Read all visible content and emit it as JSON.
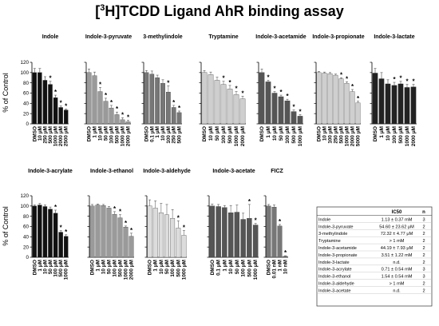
{
  "title": {
    "pre": "[",
    "sup": "3",
    "post": "H]TCDD Ligand AhR binding assay"
  },
  "ylabel": "% of Control",
  "yticks": [
    "0",
    "20",
    "40",
    "60",
    "80",
    "100",
    "120"
  ],
  "colors": {
    "black": "#111111",
    "dark": "#555555",
    "mid": "#777777",
    "gray": "#9a9a9a",
    "light": "#cfcfcf",
    "bar_edge": "#222222"
  },
  "chart_data": [
    {
      "type": "bar",
      "title": "Indole",
      "ylim": [
        0,
        120
      ],
      "color": "#111111",
      "categories": [
        "DMSO",
        "10 μM",
        "250 μM",
        "500 μM",
        "1000 μM",
        "2000 μM",
        "2500 μM"
      ],
      "values": [
        100,
        100,
        85,
        77,
        51,
        32,
        27
      ],
      "errors": [
        8,
        8,
        7,
        6,
        5,
        3,
        2
      ],
      "significant": [
        false,
        false,
        false,
        true,
        true,
        true,
        true
      ]
    },
    {
      "type": "bar",
      "title": "Indole-3-pyruvate",
      "ylim": [
        0,
        120
      ],
      "color": "#9a9a9a",
      "categories": [
        "DMSO",
        "1 μM",
        "10 μM",
        "50 μM",
        "100 μM",
        "500 μM",
        "1000 μM",
        "2000 μM"
      ],
      "values": [
        100,
        94,
        63,
        44,
        31,
        18,
        8,
        4
      ],
      "errors": [
        7,
        7,
        8,
        6,
        5,
        5,
        4,
        3
      ],
      "significant": [
        false,
        false,
        true,
        true,
        true,
        true,
        true,
        true
      ]
    },
    {
      "type": "bar",
      "title": "3-methylindole",
      "ylim": [
        0,
        120
      ],
      "color": "#777777",
      "categories": [
        "DMSO",
        "0.1 μM",
        "1 μM",
        "10 μM",
        "100 μM",
        "250 μM",
        "500 μM"
      ],
      "values": [
        100,
        97,
        90,
        79,
        62,
        32,
        22
      ],
      "errors": [
        4,
        6,
        5,
        7,
        12,
        4,
        3
      ],
      "significant": [
        false,
        false,
        false,
        false,
        true,
        true,
        true
      ]
    },
    {
      "type": "bar",
      "title": "Tryptamine",
      "ylim": [
        0,
        120
      ],
      "color": "#cfcfcf",
      "categories": [
        "DMSO",
        "10 μM",
        "50 μM",
        "100 μM",
        "500 μM",
        "1000 μM",
        "2000 μM"
      ],
      "values": [
        100,
        96,
        85,
        77,
        68,
        57,
        49
      ],
      "errors": [
        4,
        5,
        6,
        6,
        7,
        6,
        5
      ],
      "significant": [
        false,
        false,
        false,
        true,
        true,
        true,
        true
      ]
    },
    {
      "type": "bar",
      "title": "Indole-3-acetamide",
      "ylim": [
        0,
        120
      ],
      "color": "#555555",
      "categories": [
        "DMSO",
        "1 μM",
        "10 μM",
        "50 μM",
        "100 μM",
        "500 μM",
        "1000 μM"
      ],
      "values": [
        100,
        82,
        60,
        53,
        45,
        24,
        15
      ],
      "errors": [
        7,
        3,
        3,
        3,
        3,
        3,
        3
      ],
      "significant": [
        false,
        true,
        true,
        true,
        true,
        true,
        true
      ]
    },
    {
      "type": "bar",
      "title": "Indole-3-propionate",
      "ylim": [
        0,
        120
      ],
      "color": "#cfcfcf",
      "categories": [
        "DMSO",
        "10 μM",
        "100 μM",
        "250 μM",
        "500 μM",
        "1000 μM",
        "2000 μM",
        "5000 μM"
      ],
      "values": [
        100,
        99,
        98,
        95,
        88,
        79,
        63,
        41
      ],
      "errors": [
        2,
        2,
        2,
        2,
        2,
        3,
        4,
        3
      ],
      "significant": [
        false,
        false,
        false,
        false,
        true,
        true,
        true,
        true
      ]
    },
    {
      "type": "bar",
      "title": "Indole-3-lactate",
      "ylim": [
        0,
        120
      ],
      "color": "#222222",
      "categories": [
        "DMSO",
        "1 μM",
        "10 μM",
        "100 μM",
        "500 μM",
        "1000 μM",
        "2000 μM"
      ],
      "values": [
        99,
        88,
        78,
        75,
        78,
        71,
        72
      ],
      "errors": [
        9,
        12,
        8,
        6,
        5,
        6,
        5
      ],
      "significant": [
        false,
        false,
        false,
        true,
        true,
        true,
        true
      ]
    },
    {
      "type": "bar",
      "title": "Indole-3-acrylate",
      "ylim": [
        0,
        120
      ],
      "color": "#111111",
      "categories": [
        "DMSO",
        "1 μM",
        "10 μM",
        "50 μM",
        "100 μM",
        "500 μM",
        "1000 μM"
      ],
      "values": [
        100,
        102,
        99,
        94,
        86,
        49,
        41
      ],
      "errors": [
        2,
        3,
        3,
        4,
        6,
        3,
        3
      ],
      "significant": [
        false,
        false,
        false,
        false,
        true,
        true,
        true
      ]
    },
    {
      "type": "bar",
      "title": "Indole-3-ethanol",
      "ylim": [
        0,
        120
      ],
      "color": "#9a9a9a",
      "categories": [
        "DMSO",
        "1 μM",
        "10 μM",
        "50 μM",
        "100 μM",
        "500 μM",
        "1000 μM",
        "2000 μM"
      ],
      "values": [
        100,
        102,
        101,
        96,
        84,
        77,
        59,
        41
      ],
      "errors": [
        3,
        2,
        2,
        3,
        5,
        6,
        2,
        6
      ],
      "significant": [
        false,
        false,
        false,
        false,
        true,
        true,
        true,
        true
      ]
    },
    {
      "type": "bar",
      "title": "Indole-3-aldehyde",
      "ylim": [
        0,
        120
      ],
      "color": "#dcdcdc",
      "categories": [
        "DMSO",
        "1 μM",
        "10 μM",
        "50 μM",
        "100 μM",
        "500 μM",
        "1000 μM"
      ],
      "values": [
        100,
        96,
        87,
        83,
        76,
        57,
        43
      ],
      "errors": [
        12,
        14,
        18,
        20,
        17,
        14,
        9
      ],
      "significant": [
        false,
        false,
        false,
        false,
        false,
        true,
        true
      ]
    },
    {
      "type": "bar",
      "title": "Indole-3-acetate",
      "ylim": [
        0,
        120
      ],
      "color": "#555555",
      "categories": [
        "DMSO",
        "0.1 μM",
        "1 μM",
        "10 μM",
        "50 μM",
        "100 μM",
        "500 μM",
        "1000 μM"
      ],
      "values": [
        100,
        99,
        97,
        87,
        88,
        74,
        76,
        63
      ],
      "errors": [
        4,
        4,
        4,
        14,
        14,
        12,
        27,
        3
      ],
      "significant": [
        false,
        false,
        false,
        false,
        false,
        false,
        true,
        true
      ]
    },
    {
      "type": "bar",
      "title": "FICZ",
      "ylim": [
        0,
        120
      ],
      "color": "#777777",
      "categories": [
        "DMSO",
        "0.01 nM",
        "1 nM",
        "10 nM"
      ],
      "values": [
        100,
        98,
        61,
        2
      ],
      "errors": [
        3,
        4,
        3,
        1
      ],
      "significant": [
        false,
        false,
        true,
        true
      ]
    }
  ],
  "ic50_table": {
    "headers": [
      "",
      "IC50",
      "n"
    ],
    "rows": [
      [
        "Indole",
        "1.13 ± 0.37 mM",
        "3"
      ],
      [
        "Indole-3-pyruvate",
        "54.60 ± 23.62 μM",
        "2"
      ],
      [
        "3-methylindole",
        "72.32 ± 4.77 μM",
        "2"
      ],
      [
        "Tryptamine",
        "> 1 mM",
        "2"
      ],
      [
        "Indole-3-acetamide",
        "44.19 ± 7.93 μM",
        "2"
      ],
      [
        "Indole-3-propionate",
        "3.51 ± 1.22 mM",
        "2"
      ],
      [
        "Indole-3-lactate",
        "n.d.",
        "2"
      ],
      [
        "Indole-3-acrylate",
        "0.71 ± 0.54 mM",
        "3"
      ],
      [
        "Indole-3-ethanol",
        "1.54 ± 0.54 mM",
        "3"
      ],
      [
        "Indole-3-aldehyde",
        "> 1 mM",
        "2"
      ],
      [
        "Indole-3-acetate",
        "n.d.",
        "2"
      ]
    ]
  }
}
